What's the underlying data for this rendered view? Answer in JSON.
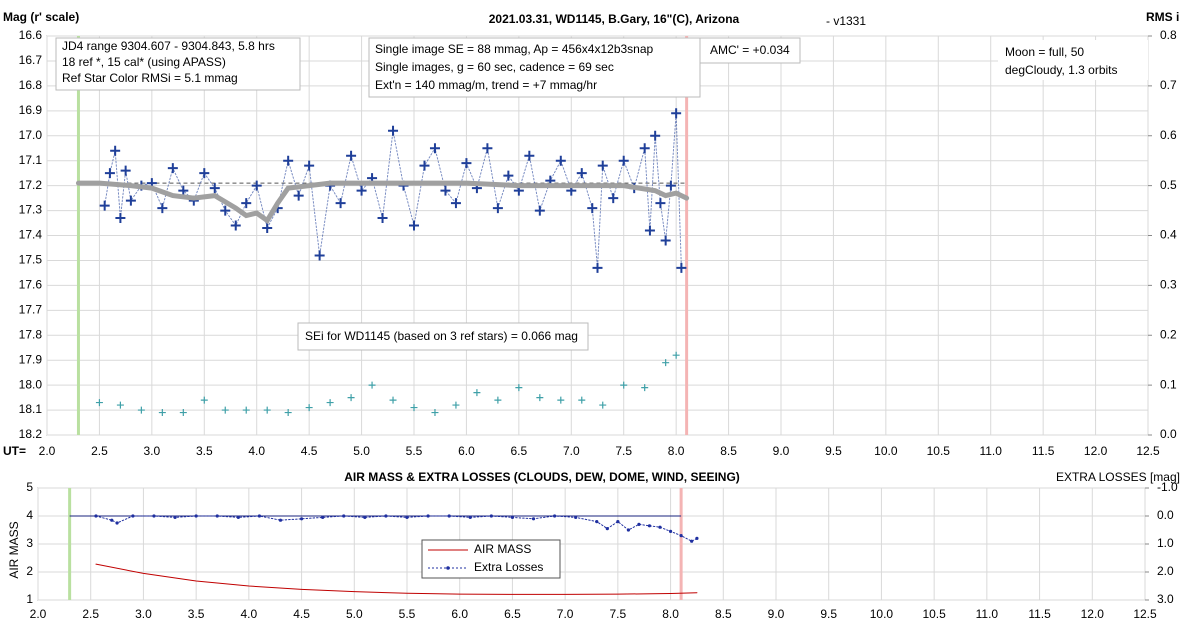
{
  "chart_data": [
    {
      "type": "scatter",
      "title": "2021.03.31, WD1145, B.Gary, 16\"(C), Arizona",
      "subtitle": "- v1331",
      "ylabel": "Mag (r' scale)",
      "y2label": "RMS i",
      "xlabel": "UT=",
      "xlim": [
        2,
        12.5
      ],
      "xticks": [
        {
          "value": 2,
          "label": "2.0"
        },
        2.5,
        {
          "value": 3,
          "label": "3.0"
        },
        3.5,
        {
          "value": 4,
          "label": "4.0"
        },
        4.5,
        {
          "value": 5,
          "label": "5.0"
        },
        5.5,
        {
          "value": 6,
          "label": "6.0"
        },
        6.5,
        {
          "value": 7,
          "label": "7.0"
        },
        7.5,
        {
          "value": 8,
          "label": "8.0"
        },
        8.5,
        {
          "value": 9,
          "label": "9.0"
        },
        9.5,
        {
          "value": 10,
          "label": "10.0"
        },
        10.5,
        {
          "value": 11,
          "label": "11.0"
        },
        11.5,
        {
          "value": 12,
          "label": "12.0"
        },
        12.5
      ],
      "ylim": [
        16.6,
        18.2
      ],
      "y_inverted": true,
      "yticks": [
        16.6,
        16.7,
        16.8,
        16.9,
        {
          "value": 17,
          "label": "17.0"
        },
        17.1,
        17.2,
        17.3,
        17.4,
        17.5,
        17.6,
        17.7,
        17.8,
        17.9,
        {
          "value": 18,
          "label": "18.0"
        },
        18.1,
        18.2
      ],
      "y2lim": [
        0,
        0.8
      ],
      "y2ticks": [
        {
          "value": 0,
          "label": "0.0"
        },
        0.1,
        0.2,
        0.3,
        0.4,
        0.5,
        0.6,
        0.7,
        0.8
      ],
      "grid": true,
      "vlines": [
        {
          "x": 2.3,
          "color": "#b9e0a0"
        },
        {
          "x": 8.1,
          "color": "#f4b4b4"
        }
      ],
      "hline": {
        "value": 17.19,
        "xrange": [
          2.3,
          8.1
        ],
        "color": "#555555",
        "style": "dashed"
      },
      "series": [
        {
          "color": "#1f3f99",
          "marker": "plus",
          "line": "dotted",
          "x": [
            2.55,
            2.6,
            2.65,
            2.7,
            2.75,
            2.8,
            2.9,
            3.0,
            3.1,
            3.2,
            3.3,
            3.4,
            3.5,
            3.6,
            3.7,
            3.8,
            3.9,
            4.0,
            4.1,
            4.2,
            4.3,
            4.4,
            4.5,
            4.6,
            4.7,
            4.8,
            4.9,
            5.0,
            5.1,
            5.2,
            5.3,
            5.4,
            5.5,
            5.6,
            5.7,
            5.8,
            5.9,
            6.0,
            6.1,
            6.2,
            6.3,
            6.4,
            6.5,
            6.6,
            6.7,
            6.8,
            6.9,
            7.0,
            7.1,
            7.2,
            7.25,
            7.3,
            7.4,
            7.5,
            7.6,
            7.7,
            7.75,
            7.8,
            7.85,
            7.9,
            7.95,
            8.0,
            8.05
          ],
          "values": [
            17.28,
            17.15,
            17.06,
            17.33,
            17.14,
            17.26,
            17.2,
            17.19,
            17.29,
            17.13,
            17.22,
            17.26,
            17.15,
            17.21,
            17.3,
            17.36,
            17.27,
            17.2,
            17.37,
            17.29,
            17.1,
            17.24,
            17.12,
            17.48,
            17.2,
            17.27,
            17.08,
            17.22,
            17.17,
            17.33,
            16.98,
            17.2,
            17.36,
            17.12,
            17.05,
            17.22,
            17.27,
            17.11,
            17.21,
            17.05,
            17.29,
            17.16,
            17.22,
            17.08,
            17.3,
            17.18,
            17.1,
            17.22,
            17.15,
            17.29,
            17.53,
            17.12,
            17.25,
            17.1,
            17.21,
            17.05,
            17.38,
            17.0,
            17.27,
            17.42,
            17.2,
            16.91,
            17.53
          ]
        },
        {
          "color": "#a0a0a0",
          "line": "solid",
          "x": [
            2.3,
            2.5,
            2.8,
            3.0,
            3.2,
            3.4,
            3.6,
            3.8,
            3.9,
            4.0,
            4.1,
            4.2,
            4.3,
            4.5,
            4.7,
            5.0,
            5.5,
            6.0,
            6.5,
            7.0,
            7.5,
            7.8,
            7.9,
            8.0,
            8.1
          ],
          "values": [
            17.19,
            17.19,
            17.2,
            17.21,
            17.24,
            17.25,
            17.24,
            17.29,
            17.32,
            17.31,
            17.34,
            17.27,
            17.21,
            17.2,
            17.19,
            17.19,
            17.19,
            17.19,
            17.2,
            17.2,
            17.2,
            17.22,
            17.24,
            17.23,
            17.25
          ]
        },
        {
          "color": "#3fa0a8",
          "marker": "plus",
          "axis": "y2",
          "x": [
            2.5,
            2.7,
            2.9,
            3.1,
            3.3,
            3.5,
            3.7,
            3.9,
            4.1,
            4.3,
            4.5,
            4.7,
            4.9,
            5.1,
            5.3,
            5.5,
            5.7,
            5.9,
            6.1,
            6.3,
            6.5,
            6.7,
            6.9,
            7.1,
            7.3,
            7.5,
            7.7,
            7.9,
            8.0
          ],
          "values": [
            0.065,
            0.06,
            0.05,
            0.045,
            0.045,
            0.07,
            0.05,
            0.05,
            0.05,
            0.045,
            0.055,
            0.065,
            0.075,
            0.1,
            0.07,
            0.055,
            0.045,
            0.06,
            0.085,
            0.07,
            0.095,
            0.075,
            0.07,
            0.07,
            0.06,
            0.1,
            0.095,
            0.145,
            0.16
          ]
        }
      ],
      "annotations": [
        {
          "lines": [
            "JD4 range 9304.607 - 9304.843, 5.8 hrs",
            "18 ref *, 15 cal* (using APASS)",
            "Ref Star Color RMSi = 5.1 mmag"
          ]
        },
        {
          "lines": [
            "Single image SE = 88 mmag, Ap = 456x4x12b3snap",
            "Single images, g = 60 sec, cadence = 69 sec",
            "Ext'n = 140 mmag/m, trend = +7 mmag/hr"
          ]
        },
        {
          "lines": [
            "AMC' = +0.034"
          ]
        },
        {
          "lines": [
            "Moon = full, 50",
            "degCloudy, 1.3 orbits"
          ]
        },
        {
          "lines": [
            "SEi for WD1145 (based on 3 ref stars) = 0.066 mag"
          ]
        }
      ]
    },
    {
      "type": "line",
      "title": "AIR MASS & EXTRA LOSSES (CLOUDS, DEW, DOME, WIND, SEEING)",
      "ylabel": "AIR MASS",
      "y2label": "EXTRA LOSSES [mag]",
      "xlim": [
        2,
        12.5
      ],
      "xticks": [
        {
          "value": 2,
          "label": "2.0"
        },
        2.5,
        {
          "value": 3,
          "label": "3.0"
        },
        3.5,
        {
          "value": 4,
          "label": "4.0"
        },
        4.5,
        {
          "value": 5,
          "label": "5.0"
        },
        5.5,
        {
          "value": 6,
          "label": "6.0"
        },
        6.5,
        {
          "value": 7,
          "label": "7.0"
        },
        7.5,
        {
          "value": 8,
          "label": "8.0"
        },
        8.5,
        {
          "value": 9,
          "label": "9.0"
        },
        9.5,
        {
          "value": 10,
          "label": "10.0"
        },
        10.5,
        {
          "value": 11,
          "label": "11.0"
        },
        11.5,
        {
          "value": 12,
          "label": "12.0"
        },
        12.5
      ],
      "ylim": [
        1,
        5
      ],
      "yticks": [
        1,
        2,
        3,
        4,
        5
      ],
      "y2lim": [
        -1,
        3
      ],
      "y2_inverted": true,
      "y2ticks": [
        {
          "value": -1,
          "label": "-1.0"
        },
        {
          "value": 0,
          "label": "0.0"
        },
        {
          "value": 1,
          "label": "1.0"
        },
        {
          "value": 2,
          "label": "2.0"
        },
        {
          "value": 3,
          "label": "3.0"
        }
      ],
      "grid": true,
      "legend": "center",
      "vlines": [
        {
          "x": 2.3,
          "color": "#b9e0a0"
        },
        {
          "x": 8.1,
          "color": "#f4b4b4"
        }
      ],
      "hline": {
        "value": 0,
        "axis": "y2",
        "xrange": [
          2.3,
          8.1
        ],
        "color": "#1a237e",
        "style": "solid"
      },
      "series": [
        {
          "name": "AIR MASS",
          "color": "#c00000",
          "line": "solid",
          "x": [
            2.55,
            3.0,
            3.5,
            4.0,
            4.5,
            5.0,
            5.5,
            6.0,
            6.5,
            7.0,
            7.5,
            8.0,
            8.25
          ],
          "values": [
            2.28,
            1.95,
            1.68,
            1.5,
            1.38,
            1.3,
            1.24,
            1.21,
            1.2,
            1.2,
            1.21,
            1.23,
            1.26
          ]
        },
        {
          "name": "Extra Losses",
          "color": "#1f2fa0",
          "line": "dotted",
          "marker": "dot",
          "axis": "y2",
          "x": [
            2.55,
            2.7,
            2.75,
            2.9,
            3.1,
            3.3,
            3.5,
            3.7,
            3.9,
            4.1,
            4.3,
            4.5,
            4.7,
            4.9,
            5.1,
            5.3,
            5.5,
            5.7,
            5.9,
            6.1,
            6.3,
            6.5,
            6.7,
            6.9,
            7.1,
            7.3,
            7.4,
            7.5,
            7.6,
            7.7,
            7.8,
            7.9,
            8.0,
            8.1,
            8.2,
            8.25
          ],
          "values": [
            0.0,
            0.15,
            0.25,
            0.0,
            0.0,
            0.05,
            0.0,
            0.0,
            0.05,
            0.0,
            0.15,
            0.1,
            0.05,
            0.0,
            0.05,
            0.0,
            0.05,
            0.0,
            0.0,
            0.05,
            0.0,
            0.05,
            0.1,
            0.0,
            0.05,
            0.2,
            0.45,
            0.2,
            0.5,
            0.3,
            0.35,
            0.4,
            0.55,
            0.7,
            0.9,
            0.8
          ]
        }
      ]
    }
  ]
}
